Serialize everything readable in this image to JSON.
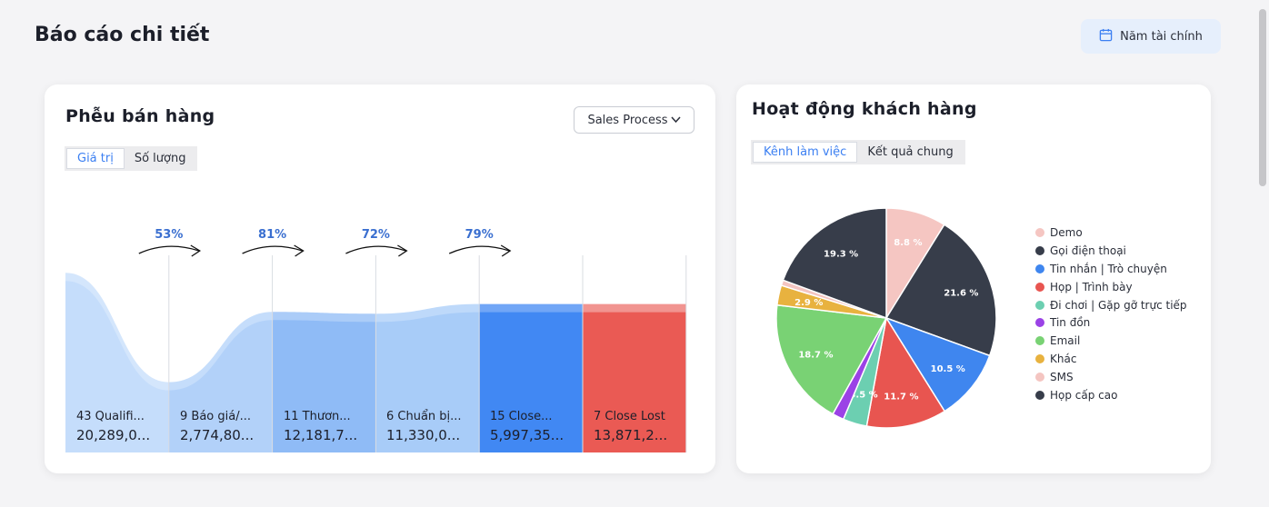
{
  "page": {
    "title": "Báo cáo chi tiết"
  },
  "header": {
    "fiscal_year_label": "Năm tài chính",
    "fiscal_year_icon": "calendar-icon"
  },
  "funnel_card": {
    "title": "Phễu bán hàng",
    "dropdown_value": "Sales Process",
    "dropdown_icon": "chevron-down-icon",
    "tabs": [
      {
        "label": "Giá trị",
        "active": true
      },
      {
        "label": "Số lượng",
        "active": false
      }
    ],
    "conversions": [
      "53%",
      "81%",
      "72%",
      "79%"
    ],
    "stages": [
      {
        "line1": "43 Qualifi...",
        "line2": "20,289,0...",
        "level": 0.92,
        "color": "#c5ddfb"
      },
      {
        "line1": "9 Báo giá/...",
        "line2": "2,774,80...",
        "level": 0.36,
        "color": "#b2d1f9"
      },
      {
        "line1": "11 Thươn...",
        "line2": "12,181,7...",
        "level": 0.72,
        "color": "#8fbbf6"
      },
      {
        "line1": "6 Chuẩn bị...",
        "line2": "11,330,0...",
        "level": 0.71,
        "color": "#a8ccf8"
      },
      {
        "line1": "15 Close...",
        "line2": "5,997,35...",
        "level": 0.76,
        "color": "#4188f3"
      },
      {
        "line1": "7 Close Lost",
        "line2": "13,871,2...",
        "level": 0.76,
        "color": "#ea5a54"
      }
    ]
  },
  "activity_card": {
    "title": "Hoạt động khách hàng",
    "tabs": [
      {
        "label": "Kênh làm việc",
        "active": true
      },
      {
        "label": "Kết quả chung",
        "active": false
      }
    ],
    "chart_data": {
      "type": "pie",
      "slices": [
        {
          "name": "Demo",
          "value": 8.8,
          "label": "8.8 %",
          "color": "#f5c6c2"
        },
        {
          "name": "Gọi điện thoại",
          "value": 21.6,
          "label": "21.6 %",
          "color": "#373d4a"
        },
        {
          "name": "Tin nhắn | Trò chuyện",
          "value": 10.5,
          "label": "10.5 %",
          "color": "#3f86ef"
        },
        {
          "name": "Họp | Trình bày",
          "value": 11.7,
          "label": "11.7 %",
          "color": "#e85550"
        },
        {
          "name": "Đi chơi | Gặp gỡ trực tiếp",
          "value": 3.5,
          "label": "3.5 %",
          "color": "#6ccfb1"
        },
        {
          "name": "Tin đồn",
          "value": 1.7,
          "label": "",
          "color": "#9b42e6"
        },
        {
          "name": "Email",
          "value": 18.7,
          "label": "18.7 %",
          "color": "#79d274"
        },
        {
          "name": "Khác",
          "value": 2.9,
          "label": "2.9 %",
          "color": "#e8b23f"
        },
        {
          "name": "SMS",
          "value": 0.8,
          "label": "",
          "color": "#f4c5c1"
        },
        {
          "name": "Họp cấp cao",
          "value": 19.3,
          "label": "19.3 %",
          "color": "#373d4a"
        }
      ],
      "legend_position": "right"
    }
  }
}
